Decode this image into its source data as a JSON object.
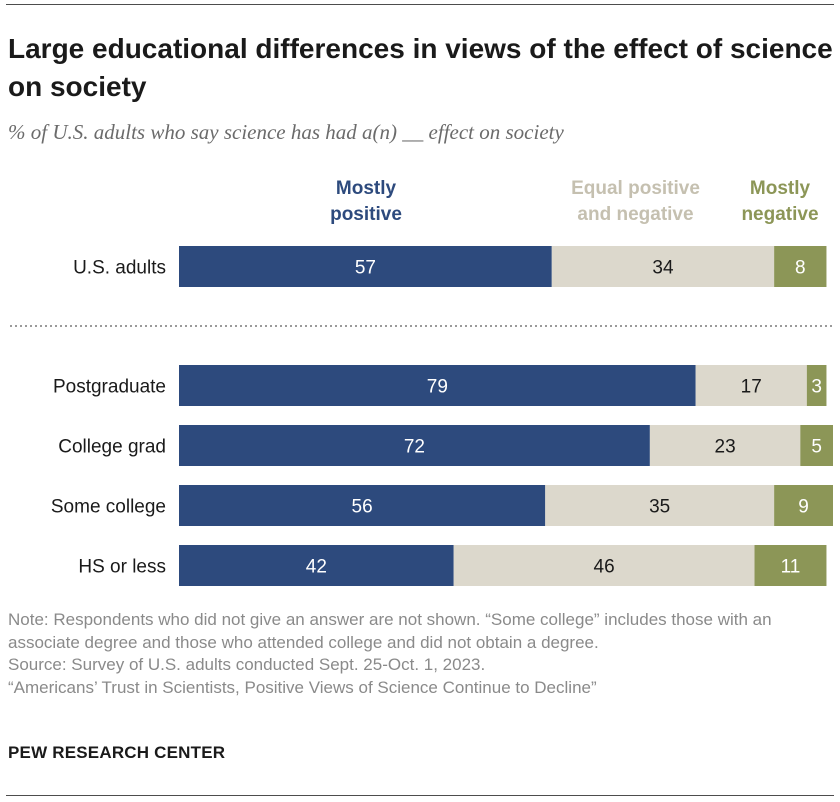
{
  "title": "Large educational differences in views of the effect of science on society",
  "subtitle": "% of U.S. adults who say science has had a(n) __ effect on society",
  "legend": {
    "positive": "Mostly\npositive",
    "equal": "Equal positive\nand negative",
    "negative": "Mostly\nnegative"
  },
  "colors": {
    "positive": "#2d4a7d",
    "equal": "#dcd8cc",
    "negative": "#8c9657",
    "positive_text": "#ffffff",
    "equal_text": "#1a1a1a",
    "negative_text": "#ffffff",
    "label_text": "#1a1a1a",
    "divider": "#9a9a9a"
  },
  "chart_data": {
    "type": "bar",
    "orientation": "horizontal",
    "stacked": true,
    "categories": [
      "U.S. adults",
      "Postgraduate",
      "College grad",
      "Some college",
      "HS or less"
    ],
    "series": [
      {
        "name": "Mostly positive",
        "values": [
          57,
          79,
          72,
          56,
          42
        ]
      },
      {
        "name": "Equal positive and negative",
        "values": [
          34,
          17,
          23,
          35,
          46
        ]
      },
      {
        "name": "Mostly negative",
        "values": [
          8,
          3,
          5,
          9,
          11
        ]
      }
    ],
    "xlim": [
      0,
      100
    ],
    "grid": false,
    "legend_position": "top",
    "divider_after_category": "U.S. adults"
  },
  "notes": {
    "note": "Note: Respondents who did not give an answer are not shown. “Some college” includes those with an associate degree and those who attended college and did not obtain a degree.",
    "source": "Source: Survey of U.S. adults conducted Sept. 25-Oct. 1, 2023.",
    "report": "“Americans’ Trust in Scientists, Positive Views of Science Continue to Decline”"
  },
  "footer": {
    "org": "PEW RESEARCH CENTER"
  }
}
